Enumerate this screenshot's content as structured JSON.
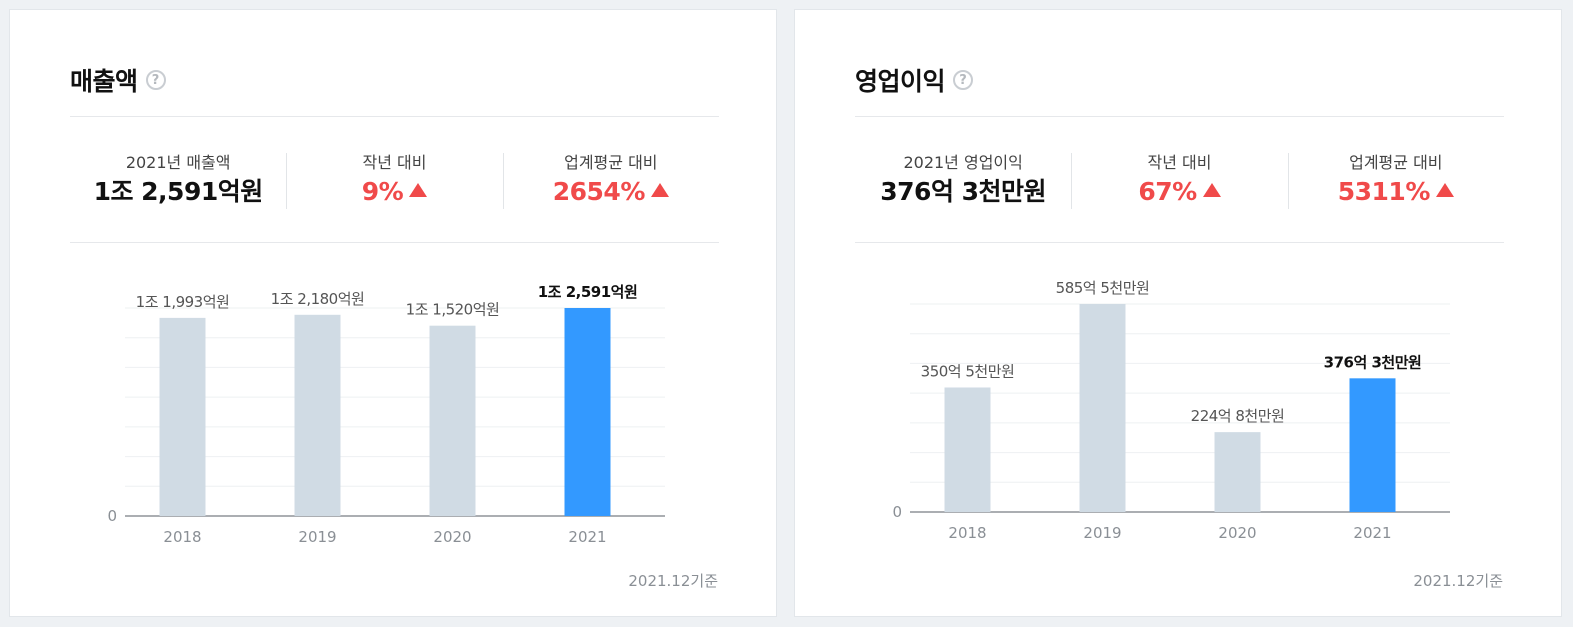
{
  "cards": [
    {
      "title": "매출액",
      "help_icon": "question-circle-icon",
      "stats": [
        {
          "label": "2021년 매출액",
          "value": "1조 2,591억원",
          "up": false
        },
        {
          "label": "작년 대비",
          "value": "9%",
          "up": true
        },
        {
          "label": "업계평균 대비",
          "value": "2654%",
          "up": true
        }
      ],
      "footnote": "2021.12기준"
    },
    {
      "title": "영업이익",
      "help_icon": "question-circle-icon",
      "stats": [
        {
          "label": "2021년 영업이익",
          "value": "376억 3천만원",
          "up": false
        },
        {
          "label": "작년 대비",
          "value": "67%",
          "up": true
        },
        {
          "label": "업계평균 대비",
          "value": "5311%",
          "up": true
        }
      ],
      "footnote": "2021.12기준"
    }
  ],
  "colors": {
    "bar": "#d0dbe4",
    "highlight": "#3399ff",
    "up": "#f04a4a"
  },
  "chart_data": [
    {
      "type": "bar",
      "categories": [
        "2018",
        "2019",
        "2020",
        "2021"
      ],
      "values": [
        11993,
        12180,
        11520,
        12591
      ],
      "value_labels": [
        "1조 1,993억원",
        "1조 2,180억원",
        "1조 1,520억원",
        "1조 2,591억원"
      ],
      "highlight_index": 3,
      "ylim": [
        0,
        12591
      ],
      "yticks": [
        "0"
      ],
      "grid": true
    },
    {
      "type": "bar",
      "categories": [
        "2018",
        "2019",
        "2020",
        "2021"
      ],
      "values": [
        350.5,
        585.5,
        224.8,
        376.3
      ],
      "value_labels": [
        "350억 5천만원",
        "585억 5천만원",
        "224억 8천만원",
        "376억 3천만원"
      ],
      "highlight_index": 3,
      "ylim": [
        0,
        585.5
      ],
      "yticks": [
        "0"
      ],
      "grid": true
    }
  ]
}
